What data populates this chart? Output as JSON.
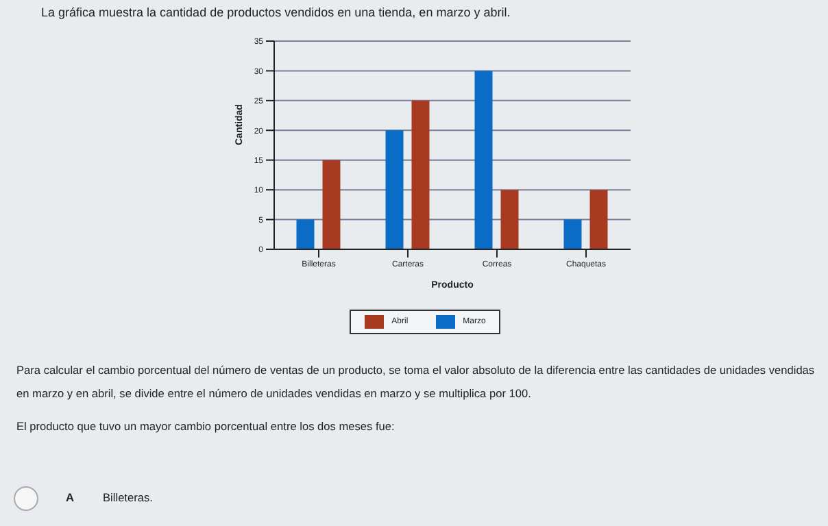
{
  "chart_data": {
    "type": "bar",
    "title": "La gráfica muestra la cantidad de productos vendidos en una tienda, en marzo y abril.",
    "xlabel": "Producto",
    "ylabel": "Cantidad",
    "categories": [
      "Billeteras",
      "Carteras",
      "Correas",
      "Chaquetas"
    ],
    "series": [
      {
        "name": "Marzo",
        "color": "#0a6cc4",
        "values": [
          5,
          20,
          30,
          5
        ]
      },
      {
        "name": "Abril",
        "color": "#a83a22",
        "values": [
          15,
          25,
          10,
          10
        ]
      }
    ],
    "ylim": [
      0,
      35
    ],
    "yticks": [
      0,
      5,
      10,
      15,
      20,
      25,
      30,
      35
    ],
    "grid": "y",
    "legend": "bottom",
    "annotations": [
      "Para calcular el cambio porcentual del número de ventas de un producto, se toma el valor absoluto de la diferencia entre las cantidades de unidades vendidas en marzo y en abril, se divide entre el número de unidades vendidas en marzo y se multiplica por 100.",
      "El producto que tuvo un mayor cambio porcentual entre los dos meses fue:",
      "A",
      "Billeteras."
    ]
  }
}
